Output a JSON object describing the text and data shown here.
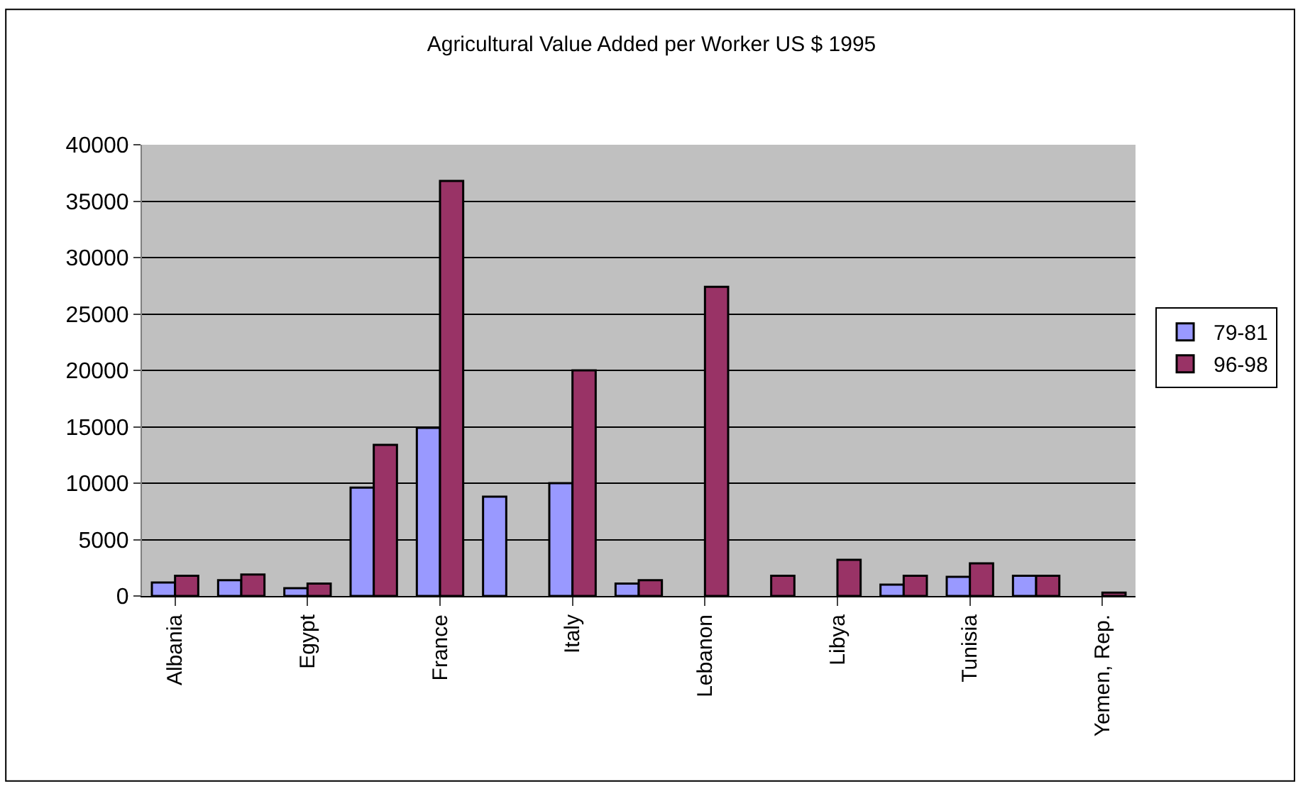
{
  "chart_data": {
    "type": "bar",
    "title": "Agricultural Value Added per Worker US $ 1995",
    "categories": [
      "Albania",
      null,
      "Egypt",
      null,
      "France",
      null,
      "Italy",
      null,
      "Lebanon",
      null,
      "Libya",
      null,
      "Tunisia",
      null,
      "Yemen, Rep."
    ],
    "series": [
      {
        "name": "79-81",
        "color": "#9999ff",
        "values": [
          1200,
          1400,
          700,
          9600,
          14900,
          8800,
          10000,
          1100,
          null,
          null,
          null,
          1000,
          1700,
          1800,
          null
        ]
      },
      {
        "name": "96-98",
        "color": "#993366",
        "values": [
          1800,
          1900,
          1100,
          13400,
          36800,
          null,
          20000,
          1400,
          27400,
          1800,
          3200,
          1800,
          2900,
          1800,
          300
        ]
      }
    ],
    "ylim": [
      0,
      40000
    ],
    "yticks": [
      0,
      5000,
      10000,
      15000,
      20000,
      25000,
      30000,
      35000,
      40000
    ],
    "grid": "y",
    "legend": "right"
  }
}
